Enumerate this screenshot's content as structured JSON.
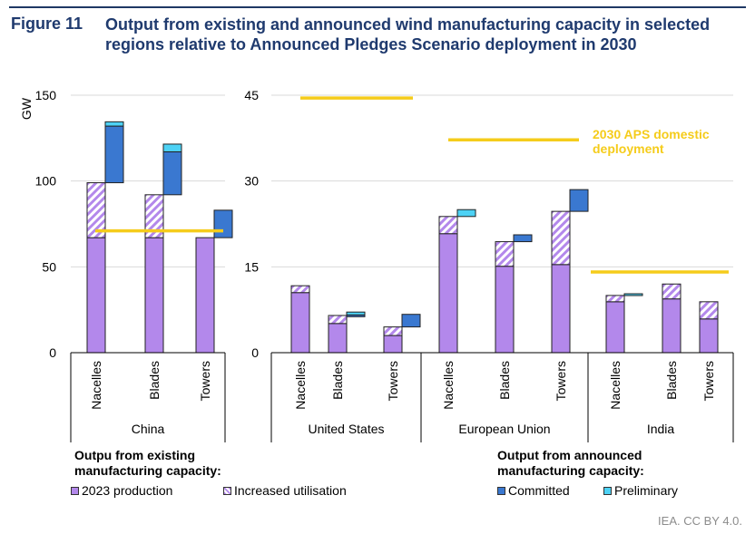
{
  "figure": {
    "number": "Figure 11",
    "title": "Output from existing and announced wind manufacturing capacity in selected regions relative to Announced Pledges Scenario deployment in 2030"
  },
  "colors": {
    "production": "#b388eb",
    "increased": "#b388eb",
    "committed": "#3a78d0",
    "preliminary": "#4dd2f5",
    "aps": "#f5cc1b",
    "title": "#1f3a6e",
    "grid": "#d9d9d9"
  },
  "chart_data": [
    {
      "type": "bar",
      "stacked": true,
      "title": "China",
      "ylabel": "GW",
      "ylim": [
        0,
        150
      ],
      "yticks": [
        0,
        50,
        100,
        150
      ],
      "categories": [
        "Nacelles",
        "Blades",
        "Towers"
      ],
      "series": [
        {
          "name": "2023 production",
          "values": [
            67,
            67,
            67
          ]
        },
        {
          "name": "Increased utilisation",
          "values": [
            32,
            25,
            0
          ]
        },
        {
          "name": "Committed",
          "values": [
            33,
            25,
            16
          ]
        },
        {
          "name": "Preliminary",
          "values": [
            2.5,
            4.5,
            0
          ]
        }
      ],
      "aps_2030": 71,
      "grid": true
    },
    {
      "type": "bar",
      "stacked": true,
      "title": "United States",
      "ylabel": "GW",
      "ylim": [
        0,
        45
      ],
      "yticks": [
        0,
        15,
        30,
        45
      ],
      "categories": [
        "Nacelles",
        "Blades",
        "Towers"
      ],
      "series": [
        {
          "name": "2023 production",
          "values": [
            10.5,
            5.1,
            3.0
          ]
        },
        {
          "name": "Increased utilisation",
          "values": [
            1.2,
            1.4,
            1.5
          ]
        },
        {
          "name": "Committed",
          "values": [
            0,
            0.1,
            2.2
          ]
        },
        {
          "name": "Preliminary",
          "values": [
            0,
            0.5,
            0
          ]
        }
      ],
      "aps_2030": 44.5,
      "grid": true
    },
    {
      "type": "bar",
      "stacked": true,
      "title": "European Union",
      "ylabel": "GW",
      "ylim": [
        0,
        45
      ],
      "yticks": [
        0,
        15,
        30,
        45
      ],
      "categories": [
        "Nacelles",
        "Blades",
        "Towers"
      ],
      "series": [
        {
          "name": "2023 production",
          "values": [
            20.8,
            15.1,
            15.4
          ]
        },
        {
          "name": "Increased utilisation",
          "values": [
            3.0,
            4.3,
            9.3
          ]
        },
        {
          "name": "Committed",
          "values": [
            0,
            1.2,
            3.8
          ]
        },
        {
          "name": "Preliminary",
          "values": [
            1.2,
            0,
            0
          ]
        }
      ],
      "aps_2030": 37.2,
      "grid": true
    },
    {
      "type": "bar",
      "stacked": true,
      "title": "India",
      "ylabel": "GW",
      "ylim": [
        0,
        45
      ],
      "yticks": [
        0,
        15,
        30,
        45
      ],
      "categories": [
        "Nacelles",
        "Blades",
        "Towers"
      ],
      "series": [
        {
          "name": "2023 production",
          "values": [
            8.9,
            9.4,
            5.9
          ]
        },
        {
          "name": "Increased utilisation",
          "values": [
            1.1,
            2.6,
            3.0
          ]
        },
        {
          "name": "Committed",
          "values": [
            0,
            0,
            0
          ]
        },
        {
          "name": "Preliminary",
          "values": [
            0.3,
            0,
            0
          ]
        }
      ],
      "aps_2030": 14.1,
      "grid": true
    }
  ],
  "axis": {
    "left_unit": "GW",
    "left_ticks": [
      "0",
      "50",
      "100",
      "150"
    ],
    "right_ticks": [
      "0",
      "15",
      "30",
      "45"
    ]
  },
  "annotation": "2030 APS domestic deployment",
  "legend": {
    "existing_heading": "Outpu from existing manufacturing capacity:",
    "existing_heading_l1": "Outpu from existing",
    "existing_heading_l2": "manufacturing capacity:",
    "announced_heading_l1": "Output from announced",
    "announced_heading_l2": "manufacturing capacity:",
    "items": [
      {
        "label": "2023 production",
        "key": "production"
      },
      {
        "label": "Increased utilisation",
        "key": "increased"
      },
      {
        "label": "Committed",
        "key": "committed"
      },
      {
        "label": "Preliminary",
        "key": "preliminary"
      }
    ]
  },
  "credit": "IEA. CC BY 4.0."
}
